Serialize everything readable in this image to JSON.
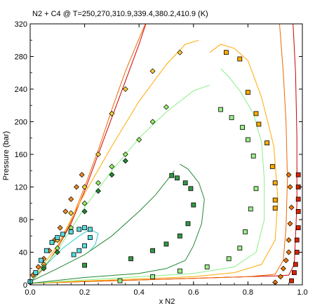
{
  "chart_data": {
    "type": "scatter",
    "title": "N2 + C4 @ T=250,270,310.9,339.4,380.2,410.9 (K)",
    "xlabel": "x N2",
    "ylabel": "Pressure (bar)",
    "xlim": [
      0,
      1
    ],
    "ylim": [
      0,
      320
    ],
    "x_ticks": [
      0,
      0.2,
      0.4,
      0.6,
      0.8,
      1
    ],
    "x_tick_labels": [
      "0.0",
      "0.2",
      "0.4",
      "0.6",
      "0.8",
      "1.0"
    ],
    "y_ticks": [
      0,
      40,
      80,
      120,
      160,
      200,
      240,
      280,
      320
    ],
    "y_tick_labels": [
      "0",
      "40",
      "80",
      "120",
      "160",
      "200",
      "240",
      "280",
      "320"
    ],
    "grid": false,
    "legend": "none",
    "series": [
      {
        "color": "#cc0000",
        "marker": "square",
        "marker_fill": "#dd2200",
        "points": [
          [
            0.96,
            5
          ],
          [
            0.97,
            15
          ],
          [
            0.975,
            25
          ],
          [
            0.98,
            40
          ],
          [
            0.98,
            55
          ],
          [
            0.985,
            70
          ],
          [
            0.985,
            90
          ],
          [
            0.985,
            105
          ],
          [
            0.985,
            120
          ],
          [
            0.985,
            135
          ]
        ],
        "curve_bubble": [
          [
            0.0,
            3
          ],
          [
            0.05,
            20
          ],
          [
            0.1,
            45
          ],
          [
            0.15,
            75
          ],
          [
            0.2,
            115
          ],
          [
            0.25,
            160
          ],
          [
            0.3,
            205
          ],
          [
            0.35,
            250
          ],
          [
            0.4,
            295
          ],
          [
            0.43,
            325
          ]
        ],
        "curve_dew": [
          [
            0.0,
            2
          ],
          [
            0.4,
            6
          ],
          [
            0.7,
            9
          ],
          [
            0.9,
            11
          ],
          [
            0.95,
            12
          ],
          [
            0.97,
            25
          ],
          [
            0.975,
            60
          ],
          [
            0.98,
            100
          ],
          [
            0.98,
            180
          ],
          [
            0.975,
            260
          ],
          [
            0.965,
            325
          ]
        ]
      },
      {
        "color": "#ee6600",
        "marker": "diamond",
        "marker_fill": "#ee7700",
        "points": [
          [
            0.9,
            3
          ],
          [
            0.92,
            10
          ],
          [
            0.93,
            20
          ],
          [
            0.94,
            30
          ],
          [
            0.95,
            40
          ],
          [
            0.95,
            55
          ],
          [
            0.955,
            75
          ],
          [
            0.96,
            95
          ],
          [
            0.955,
            120
          ],
          [
            0.95,
            135
          ]
        ],
        "curve_bubble": [
          [
            0.0,
            3
          ],
          [
            0.05,
            20
          ],
          [
            0.1,
            45
          ],
          [
            0.15,
            78
          ],
          [
            0.2,
            120
          ],
          [
            0.25,
            165
          ],
          [
            0.3,
            215
          ],
          [
            0.35,
            262
          ],
          [
            0.4,
            302
          ],
          [
            0.43,
            325
          ]
        ],
        "curve_dew": [
          [
            0.0,
            2
          ],
          [
            0.3,
            5
          ],
          [
            0.6,
            8
          ],
          [
            0.8,
            10
          ],
          [
            0.9,
            13
          ],
          [
            0.93,
            30
          ],
          [
            0.94,
            70
          ],
          [
            0.945,
            130
          ],
          [
            0.94,
            200
          ],
          [
            0.93,
            260
          ],
          [
            0.915,
            325
          ]
        ]
      },
      {
        "color": "#ff8800",
        "marker": "diamond",
        "marker_fill": "#ee8822",
        "points": [
          [
            0.01,
            12
          ],
          [
            0.03,
            22
          ],
          [
            0.05,
            32
          ],
          [
            0.07,
            42
          ],
          [
            0.09,
            55
          ],
          [
            0.11,
            70
          ],
          [
            0.13,
            90
          ],
          [
            0.15,
            105
          ],
          [
            0.17,
            120
          ],
          [
            0.19,
            135
          ]
        ],
        "curve_bubble": [],
        "curve_dew": []
      },
      {
        "color": "#ffaa00",
        "marker": "square",
        "marker_fill": "#ffaa00",
        "points": [
          [
            0.72,
            285
          ],
          [
            0.77,
            277
          ],
          [
            0.8,
            236
          ],
          [
            0.83,
            210
          ],
          [
            0.84,
            197
          ],
          [
            0.87,
            174
          ],
          [
            0.89,
            145
          ],
          [
            0.9,
            125
          ],
          [
            0.9,
            104
          ],
          [
            0.9,
            94
          ]
        ],
        "curve_bubble": [
          [
            0.0,
            3
          ],
          [
            0.1,
            48
          ],
          [
            0.2,
            112
          ],
          [
            0.3,
            170
          ],
          [
            0.4,
            225
          ],
          [
            0.5,
            270
          ],
          [
            0.57,
            295
          ],
          [
            0.62,
            300
          ]
        ],
        "curve_dew": [
          [
            0.0,
            2
          ],
          [
            0.3,
            6
          ],
          [
            0.6,
            10
          ],
          [
            0.75,
            15
          ],
          [
            0.85,
            25
          ],
          [
            0.9,
            55
          ],
          [
            0.91,
            105
          ],
          [
            0.895,
            170
          ],
          [
            0.85,
            230
          ],
          [
            0.8,
            275
          ],
          [
            0.75,
            290
          ],
          [
            0.7,
            295
          ],
          [
            0.66,
            285
          ]
        ]
      },
      {
        "color": "#ffaa00",
        "marker": "diamond",
        "marker_fill": "#ffcc33",
        "points": [
          [
            0.0,
            4
          ],
          [
            0.05,
            25
          ],
          [
            0.1,
            55
          ],
          [
            0.15,
            88
          ],
          [
            0.2,
            120
          ],
          [
            0.25,
            160
          ],
          [
            0.3,
            210
          ],
          [
            0.35,
            240
          ],
          [
            0.45,
            262
          ],
          [
            0.55,
            285
          ]
        ],
        "curve_bubble": [],
        "curve_dew": []
      },
      {
        "color": "#88ee88",
        "marker": "diamond",
        "marker_fill": "#99ee66",
        "points": [
          [
            0.05,
            22
          ],
          [
            0.1,
            45
          ],
          [
            0.15,
            70
          ],
          [
            0.2,
            100
          ],
          [
            0.25,
            125
          ],
          [
            0.3,
            145
          ],
          [
            0.35,
            160
          ],
          [
            0.4,
            178
          ],
          [
            0.45,
            200
          ],
          [
            0.5,
            218
          ]
        ],
        "curve_bubble": [
          [
            0.0,
            3
          ],
          [
            0.1,
            42
          ],
          [
            0.2,
            95
          ],
          [
            0.3,
            140
          ],
          [
            0.4,
            180
          ],
          [
            0.5,
            212
          ],
          [
            0.6,
            238
          ],
          [
            0.66,
            245
          ]
        ],
        "curve_dew": [
          [
            0.0,
            2
          ],
          [
            0.3,
            8
          ],
          [
            0.6,
            14
          ],
          [
            0.75,
            22
          ],
          [
            0.83,
            40
          ],
          [
            0.86,
            80
          ],
          [
            0.86,
            130
          ],
          [
            0.85,
            175
          ],
          [
            0.82,
            210
          ],
          [
            0.77,
            238
          ],
          [
            0.73,
            255
          ],
          [
            0.7,
            265
          ]
        ]
      },
      {
        "color": "#66dd66",
        "marker": "square",
        "marker_fill": "#99ee88",
        "points": [
          [
            0.33,
            5
          ],
          [
            0.45,
            10
          ],
          [
            0.55,
            17
          ],
          [
            0.65,
            22
          ],
          [
            0.73,
            32
          ],
          [
            0.77,
            45
          ],
          [
            0.79,
            65
          ],
          [
            0.81,
            93
          ],
          [
            0.83,
            118
          ],
          [
            0.82,
            158
          ],
          [
            0.8,
            178
          ],
          [
            0.78,
            193
          ],
          [
            0.74,
            205
          ],
          [
            0.7,
            215
          ]
        ],
        "curve_bubble": [],
        "curve_dew": []
      },
      {
        "color": "#228833",
        "marker": "square",
        "marker_fill": "#339944",
        "points": [
          [
            0.2,
            24
          ],
          [
            0.37,
            32
          ],
          [
            0.45,
            42
          ],
          [
            0.5,
            50
          ],
          [
            0.55,
            60
          ],
          [
            0.58,
            75
          ],
          [
            0.6,
            98
          ],
          [
            0.59,
            118
          ],
          [
            0.57,
            125
          ],
          [
            0.54,
            131
          ],
          [
            0.52,
            134
          ]
        ],
        "curve_bubble": [
          [
            0.0,
            4
          ],
          [
            0.1,
            20
          ],
          [
            0.2,
            37
          ],
          [
            0.3,
            60
          ],
          [
            0.4,
            90
          ],
          [
            0.46,
            110
          ],
          [
            0.5,
            127
          ],
          [
            0.53,
            140
          ]
        ],
        "curve_dew": [
          [
            0.0,
            2
          ],
          [
            0.2,
            9
          ],
          [
            0.4,
            14
          ],
          [
            0.5,
            20
          ],
          [
            0.57,
            30
          ],
          [
            0.6,
            48
          ],
          [
            0.63,
            75
          ],
          [
            0.64,
            105
          ],
          [
            0.62,
            125
          ],
          [
            0.58,
            142
          ],
          [
            0.55,
            148
          ]
        ]
      },
      {
        "color": "#228833",
        "marker": "diamond",
        "marker_fill": "#228833",
        "points": [
          [
            0.0,
            3
          ],
          [
            0.05,
            20
          ],
          [
            0.1,
            40
          ],
          [
            0.15,
            65
          ],
          [
            0.2,
            90
          ],
          [
            0.25,
            115
          ],
          [
            0.3,
            135
          ],
          [
            0.35,
            152
          ]
        ],
        "curve_bubble": [],
        "curve_dew": []
      },
      {
        "color": "#33cccc",
        "marker": "square",
        "marker_fill": "#55dddd",
        "points": [
          [
            0.0,
            4
          ],
          [
            0.02,
            15
          ],
          [
            0.04,
            30
          ],
          [
            0.06,
            42
          ],
          [
            0.08,
            52
          ],
          [
            0.1,
            58
          ],
          [
            0.12,
            62
          ],
          [
            0.15,
            65
          ],
          [
            0.18,
            68
          ],
          [
            0.2,
            70
          ],
          [
            0.22,
            68
          ],
          [
            0.22,
            58
          ],
          [
            0.2,
            48
          ],
          [
            0.18,
            42
          ],
          [
            0.16,
            37
          ]
        ],
        "curve_bubble": [
          [
            0.0,
            3
          ],
          [
            0.06,
            25
          ],
          [
            0.12,
            45
          ],
          [
            0.18,
            60
          ],
          [
            0.22,
            68
          ],
          [
            0.25,
            63
          ],
          [
            0.24,
            50
          ],
          [
            0.22,
            42
          ]
        ],
        "curve_dew": []
      }
    ]
  }
}
